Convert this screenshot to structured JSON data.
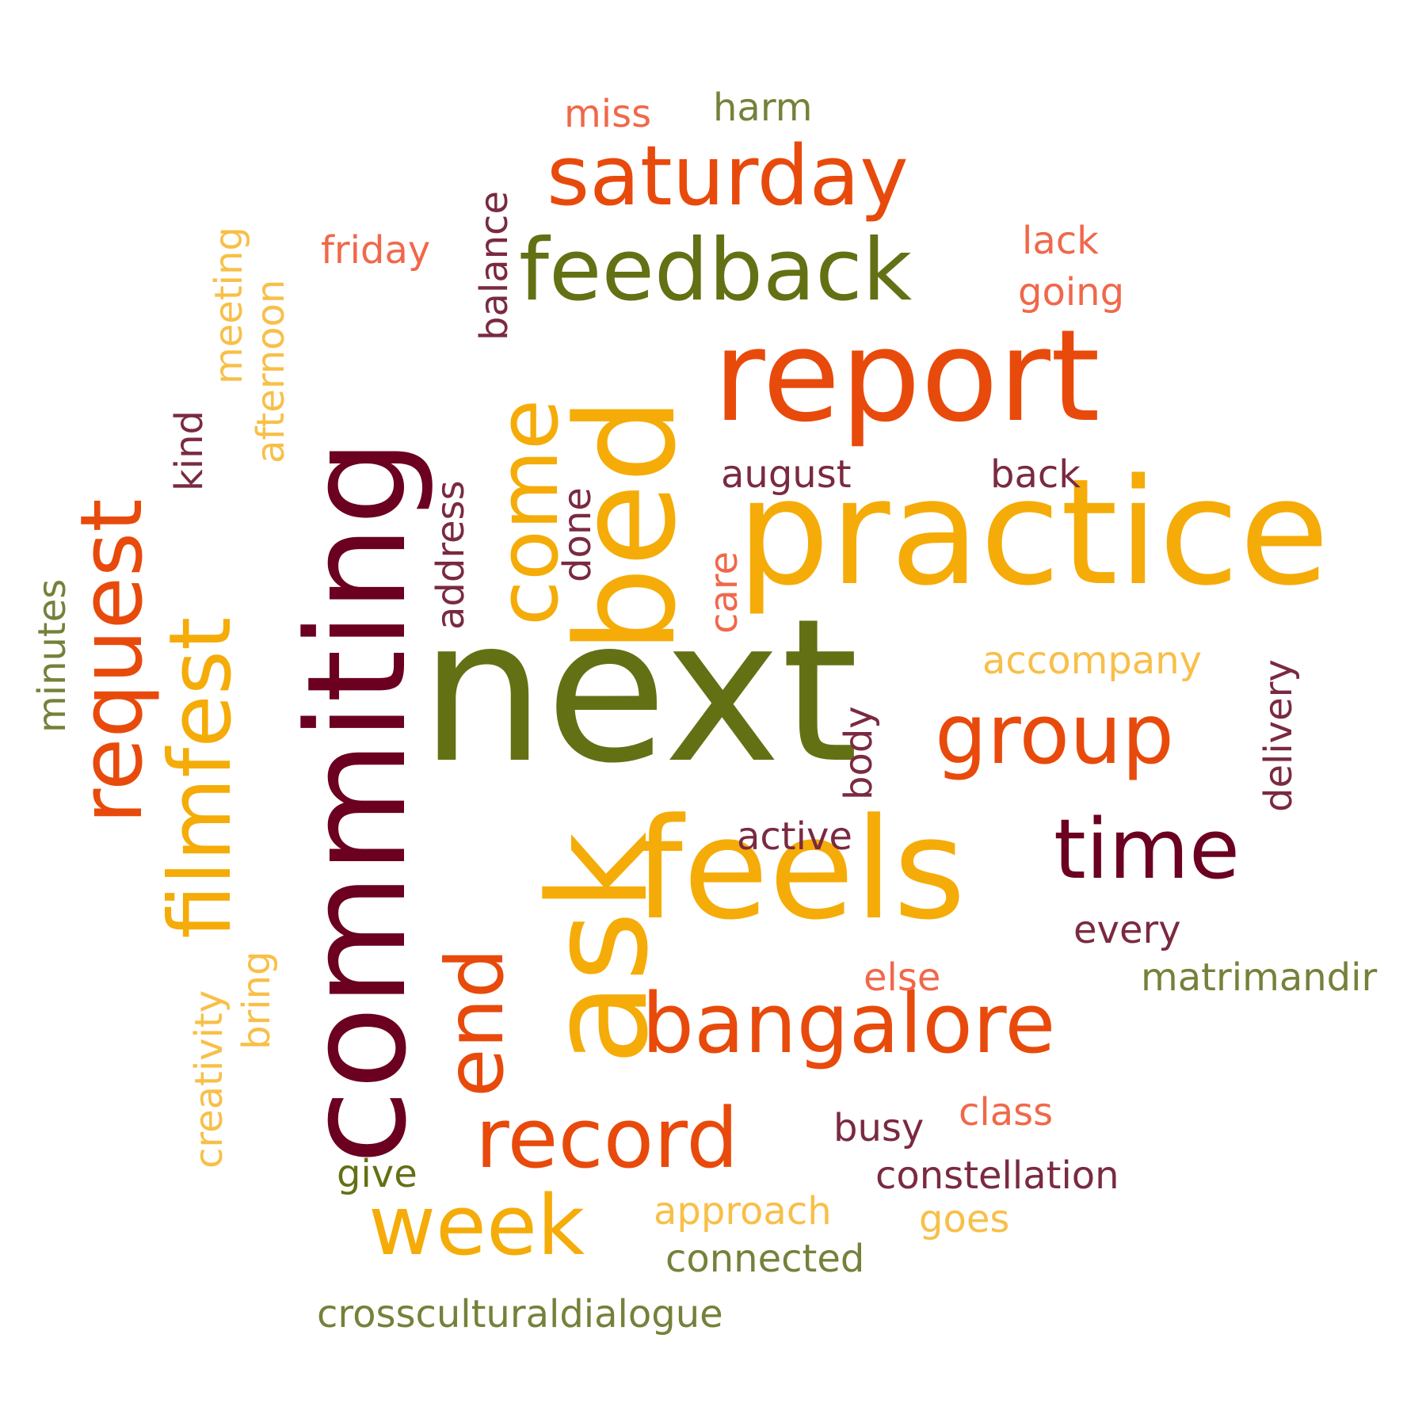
{
  "palette": {
    "maroon": "#6b0020",
    "plum": "#7a2a40",
    "olive": "#647014",
    "olive_light": "#75813a",
    "orange": "#e84a0c",
    "salmon": "#f0684a",
    "gold": "#f5ac08",
    "gold_light": "#f8bf48"
  },
  "words": {
    "next": "next",
    "practice": "practice",
    "report": "report",
    "commiting": "commiting",
    "feels": "feels",
    "ask": "ask",
    "bed": "bed",
    "feedback": "feedback",
    "saturday": "saturday",
    "bangalore": "bangalore",
    "request": "request",
    "filmfest": "filmfest",
    "group": "group",
    "time": "time",
    "record": "record",
    "week": "week",
    "come": "come",
    "end": "end",
    "miss": "miss",
    "harm": "harm",
    "friday": "friday",
    "balance": "balance",
    "lack": "lack",
    "going": "going",
    "meeting": "meeting",
    "afternoon": "afternoon",
    "kind": "kind",
    "address": "address",
    "done": "done",
    "august": "august",
    "back": "back",
    "care": "care",
    "minutes": "minutes",
    "accompany": "accompany",
    "delivery": "delivery",
    "body": "body",
    "active": "active",
    "every": "every",
    "matrimandir": "matrimandir",
    "else": "else",
    "creativity": "creativity",
    "bring": "bring",
    "busy": "busy",
    "class": "class",
    "give": "give",
    "constellation": "constellation",
    "approach": "approach",
    "goes": "goes",
    "connected": "connected",
    "crossculturaldialogue": "crossculturaldialogue"
  }
}
